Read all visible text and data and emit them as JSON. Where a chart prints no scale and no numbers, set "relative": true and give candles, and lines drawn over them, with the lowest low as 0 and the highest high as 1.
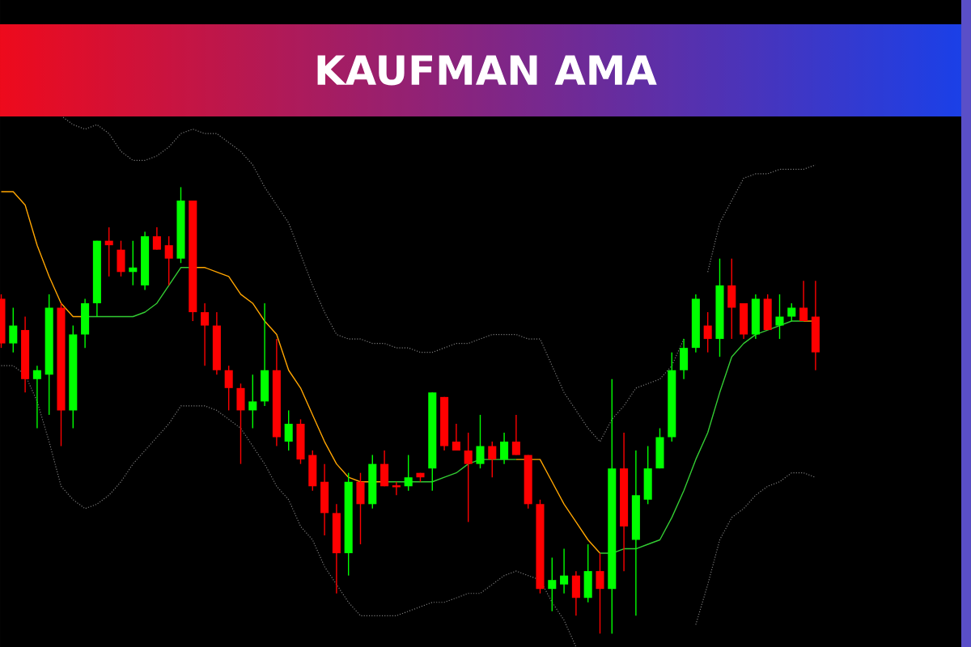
{
  "chart_data": {
    "type": "candlestick",
    "title": "KAUFMAN AMA",
    "relative": true,
    "tick_labels": false,
    "categories": [
      null,
      null,
      null,
      null,
      null,
      null,
      null,
      null,
      null,
      null,
      null,
      null,
      null,
      null,
      null,
      null,
      null,
      null,
      null,
      null,
      null,
      null,
      null,
      null,
      null,
      null,
      null,
      null,
      null,
      null,
      null,
      null,
      null,
      null,
      null,
      null,
      null,
      null,
      null,
      null,
      null,
      null,
      null,
      null,
      null,
      null,
      null,
      null,
      null,
      null,
      null,
      null,
      null,
      null,
      null,
      null,
      null,
      null,
      null,
      null,
      null,
      null,
      null,
      null,
      null,
      null,
      null,
      null,
      null
    ],
    "ohlc": [
      [
        0.75,
        0.76,
        0.64,
        0.65
      ],
      [
        0.65,
        0.73,
        0.63,
        0.69
      ],
      [
        0.68,
        0.71,
        0.54,
        0.57
      ],
      [
        0.57,
        0.6,
        0.46,
        0.59
      ],
      [
        0.58,
        0.76,
        0.49,
        0.73
      ],
      [
        0.73,
        0.74,
        0.42,
        0.5
      ],
      [
        0.5,
        0.69,
        0.46,
        0.67
      ],
      [
        0.67,
        0.75,
        0.64,
        0.74
      ],
      [
        0.74,
        0.88,
        0.71,
        0.88
      ],
      [
        0.88,
        0.91,
        0.8,
        0.87
      ],
      [
        0.86,
        0.88,
        0.8,
        0.81
      ],
      [
        0.81,
        0.88,
        0.78,
        0.82
      ],
      [
        0.78,
        0.9,
        0.77,
        0.89
      ],
      [
        0.89,
        0.91,
        0.86,
        0.86
      ],
      [
        0.87,
        0.89,
        0.78,
        0.84
      ],
      [
        0.84,
        1.0,
        0.83,
        0.97
      ],
      [
        0.97,
        0.97,
        0.7,
        0.72
      ],
      [
        0.72,
        0.74,
        0.6,
        0.69
      ],
      [
        0.69,
        0.72,
        0.58,
        0.59
      ],
      [
        0.59,
        0.6,
        0.5,
        0.55
      ],
      [
        0.55,
        0.56,
        0.38,
        0.5
      ],
      [
        0.5,
        0.58,
        0.46,
        0.52
      ],
      [
        0.52,
        0.74,
        0.51,
        0.59
      ],
      [
        0.59,
        0.66,
        0.42,
        0.44
      ],
      [
        0.43,
        0.5,
        0.41,
        0.47
      ],
      [
        0.47,
        0.48,
        0.38,
        0.39
      ],
      [
        0.4,
        0.41,
        0.32,
        0.33
      ],
      [
        0.34,
        0.38,
        0.22,
        0.27
      ],
      [
        0.27,
        0.29,
        0.09,
        0.18
      ],
      [
        0.18,
        0.36,
        0.13,
        0.34
      ],
      [
        0.34,
        0.36,
        0.2,
        0.29
      ],
      [
        0.29,
        0.4,
        0.28,
        0.38
      ],
      [
        0.38,
        0.41,
        0.33,
        0.33
      ],
      [
        0.33,
        0.34,
        0.31,
        0.33
      ],
      [
        0.33,
        0.4,
        0.32,
        0.35
      ],
      [
        0.36,
        0.36,
        0.34,
        0.35
      ],
      [
        0.37,
        0.54,
        0.32,
        0.54
      ],
      [
        0.53,
        0.53,
        0.41,
        0.42
      ],
      [
        0.43,
        0.47,
        0.41,
        0.41
      ],
      [
        0.41,
        0.45,
        0.25,
        0.38
      ],
      [
        0.38,
        0.49,
        0.37,
        0.42
      ],
      [
        0.42,
        0.43,
        0.35,
        0.39
      ],
      [
        0.39,
        0.45,
        0.38,
        0.43
      ],
      [
        0.43,
        0.49,
        0.4,
        0.4
      ],
      [
        0.4,
        0.4,
        0.28,
        0.29
      ],
      [
        0.29,
        0.3,
        0.09,
        0.1
      ],
      [
        0.1,
        0.17,
        0.05,
        0.12
      ],
      [
        0.11,
        0.19,
        0.09,
        0.13
      ],
      [
        0.13,
        0.14,
        0.04,
        0.08
      ],
      [
        0.08,
        0.2,
        0.07,
        0.14
      ],
      [
        0.14,
        0.18,
        0,
        0.1
      ],
      [
        0.1,
        0.57,
        0,
        0.37
      ],
      [
        0.37,
        0.45,
        0.14,
        0.24
      ],
      [
        0.21,
        0.41,
        0.04,
        0.31
      ],
      [
        0.3,
        0.42,
        0.29,
        0.37
      ],
      [
        0.37,
        0.46,
        0.37,
        0.44
      ],
      [
        0.44,
        0.63,
        0.43,
        0.59
      ],
      [
        0.59,
        0.66,
        0.57,
        0.64
      ],
      [
        0.64,
        0.76,
        0.63,
        0.75
      ],
      [
        0.69,
        0.72,
        0.63,
        0.66
      ],
      [
        0.66,
        0.84,
        0.62,
        0.78
      ],
      [
        0.78,
        0.84,
        0.66,
        0.73
      ],
      [
        0.74,
        0.74,
        0.66,
        0.67
      ],
      [
        0.67,
        0.76,
        0.66,
        0.75
      ],
      [
        0.75,
        0.76,
        0.68,
        0.68
      ],
      [
        0.69,
        0.76,
        0.66,
        0.71
      ],
      [
        0.71,
        0.74,
        0.7,
        0.73
      ],
      [
        0.73,
        0.79,
        0.7,
        0.7
      ],
      [
        0.71,
        0.79,
        0.59,
        0.63
      ]
    ],
    "colors": [
      "#ff0000",
      "#00ff00",
      "#ff0000",
      "#00ff00",
      "#00ff00",
      "#ff0000",
      "#00ff00",
      "#00ff00",
      "#00ff00",
      "#ff0000",
      "#ff0000",
      "#00ff00",
      "#00ff00",
      "#ff0000",
      "#ff0000",
      "#00ff00",
      "#ff0000",
      "#ff0000",
      "#ff0000",
      "#ff0000",
      "#ff0000",
      "#00ff00",
      "#00ff00",
      "#ff0000",
      "#00ff00",
      "#ff0000",
      "#ff0000",
      "#ff0000",
      "#ff0000",
      "#00ff00",
      "#ff0000",
      "#00ff00",
      "#ff0000",
      "#ff0000",
      "#00ff00",
      "#ff0000",
      "#00ff00",
      "#ff0000",
      "#ff0000",
      "#ff0000",
      "#00ff00",
      "#ff0000",
      "#00ff00",
      "#ff0000",
      "#ff0000",
      "#ff0000",
      "#00ff00",
      "#00ff00",
      "#ff0000",
      "#00ff00",
      "#ff0000",
      "#00ff00",
      "#ff0000",
      "#00ff00",
      "#00ff00",
      "#00ff00",
      "#00ff00",
      "#00ff00",
      "#00ff00",
      "#ff0000",
      "#00ff00",
      "#ff0000",
      "#ff0000",
      "#00ff00",
      "#ff0000",
      "#00ff00",
      "#00ff00",
      "#ff0000",
      "#ff0000"
    ],
    "series": [
      {
        "type": "line",
        "color": "#7a7a7a",
        "line_style": "dotted",
        "values": [
          null,
          null,
          null,
          null,
          null,
          1.16,
          1.14,
          1.13,
          1.14,
          1.12,
          1.08,
          1.06,
          1.06,
          1.07,
          1.09,
          1.12,
          1.13,
          1.12,
          1.12,
          1.1,
          1.08,
          1.05,
          1.0,
          0.96,
          0.92,
          0.85,
          0.78,
          0.72,
          0.67,
          0.66,
          0.66,
          0.65,
          0.65,
          0.64,
          0.64,
          0.63,
          0.63,
          0.64,
          0.65,
          0.65,
          0.66,
          0.67,
          0.67,
          0.67,
          0.66,
          0.66,
          0.6,
          0.54,
          0.5,
          0.46,
          0.43,
          0.48,
          0.51,
          0.55,
          0.56,
          0.57,
          0.6,
          0.66,
          null,
          0.81,
          0.92,
          0.97,
          1.02,
          1.03,
          1.03,
          1.04,
          1.04,
          1.04,
          1.05
        ]
      },
      {
        "type": "line",
        "color": "#7a7a7a",
        "line_style": "dotted",
        "values": [
          0.6,
          0.6,
          0.58,
          0.52,
          0.43,
          0.33,
          0.3,
          0.28,
          0.29,
          0.31,
          0.34,
          0.38,
          0.41,
          0.44,
          0.47,
          0.51,
          0.51,
          0.51,
          0.5,
          0.48,
          0.46,
          0.42,
          0.38,
          0.33,
          0.3,
          0.24,
          0.21,
          0.15,
          0.11,
          0.07,
          0.04,
          0.04,
          0.04,
          0.04,
          0.05,
          0.06,
          0.07,
          0.07,
          0.08,
          0.09,
          0.09,
          0.11,
          0.13,
          0.14,
          0.13,
          0.12,
          0.07,
          0.03,
          -0.03,
          null,
          null,
          null,
          null,
          null,
          null,
          null,
          null,
          null,
          0.02,
          0.11,
          0.21,
          0.26,
          0.28,
          0.31,
          0.33,
          0.34,
          0.36,
          0.36,
          0.35
        ]
      },
      {
        "type": "line",
        "color": "#ffa500",
        "line_style": "solid",
        "values": [
          0.99,
          0.99,
          0.96,
          0.87,
          0.8,
          0.74,
          0.71,
          0.71,
          null,
          null,
          null,
          null,
          null,
          null,
          null,
          null,
          0.82,
          0.82,
          0.81,
          0.8,
          0.76,
          0.74,
          0.7,
          0.67,
          0.59,
          0.55,
          0.49,
          0.43,
          0.38,
          0.35,
          0.34,
          0.34,
          0.34,
          null,
          null,
          null,
          null,
          null,
          null,
          null,
          null,
          null,
          null,
          0.39,
          0.39,
          0.39,
          0.34,
          0.29,
          0.25,
          0.21,
          0.18,
          null,
          null,
          null,
          null,
          null,
          null,
          null,
          null,
          null,
          null,
          null,
          null,
          null,
          null,
          null,
          null,
          0.7,
          0.7
        ]
      },
      {
        "type": "line",
        "color": "#33cc33",
        "line_style": "solid",
        "values": [
          null,
          null,
          null,
          null,
          null,
          null,
          null,
          0.71,
          0.71,
          0.71,
          0.71,
          0.71,
          0.72,
          0.74,
          0.78,
          0.82,
          0.82,
          null,
          null,
          null,
          null,
          null,
          null,
          null,
          null,
          null,
          null,
          null,
          null,
          null,
          null,
          null,
          0.34,
          0.34,
          0.34,
          0.34,
          0.34,
          0.35,
          0.36,
          0.38,
          0.39,
          0.39,
          0.39,
          0.39,
          null,
          null,
          null,
          null,
          null,
          null,
          0.18,
          0.18,
          0.19,
          0.19,
          0.2,
          0.21,
          0.26,
          0.32,
          0.39,
          0.45,
          0.54,
          0.62,
          0.65,
          0.67,
          0.68,
          0.69,
          0.7,
          0.7,
          null
        ]
      }
    ]
  }
}
